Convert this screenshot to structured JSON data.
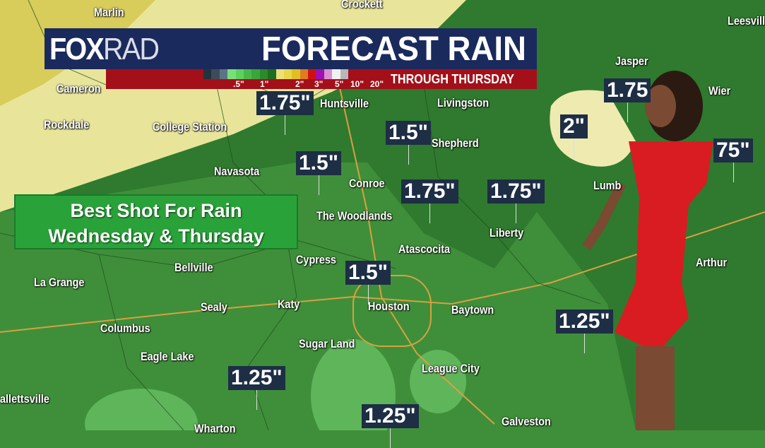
{
  "header": {
    "logo": "FOXRAD",
    "logo_bold": "FOX",
    "logo_light": "RAD",
    "title": "FORECAST RAIN",
    "subtitle": "THROUGH THURSDAY",
    "legend_colors": [
      "#24323c",
      "#3c4c58",
      "#5a7484",
      "#78e078",
      "#5ed05e",
      "#48b848",
      "#3aa53a",
      "#2b8a2b",
      "#1f6e1f",
      "#ece07a",
      "#e8d648",
      "#e0c020",
      "#e07b20",
      "#d01010",
      "#a010b0",
      "#d890d0",
      "#f0f0f0",
      "#b8b8b8"
    ],
    "legend_labels": [
      ".5\"",
      "1\"",
      "2\"",
      "3\"",
      "5\"",
      "10\"",
      "20\""
    ]
  },
  "banner": {
    "line1": "Best Shot For Rain",
    "line2": "Wednesday & Thursday"
  },
  "cities": [
    "Marlin",
    "Crockett",
    "Leesville",
    "Cameron",
    "Rockdale",
    "College Station",
    "Huntsville",
    "Livingston",
    "Jasper",
    "Wier",
    "Shepherd",
    "Navasota",
    "Conroe",
    "The Woodlands",
    "Liberty",
    "Lumb",
    "Atascocita",
    "Cypress",
    "Bellville",
    "La Grange",
    "Sealy",
    "Katy",
    "Houston",
    "Baytown",
    "Arthur",
    "Columbus",
    "Sugar Land",
    "Eagle Lake",
    "League City",
    "allettsville",
    "Wharton",
    "Galveston"
  ],
  "rain_totals": [
    "1.75\"",
    "1.5\"",
    "1.5\"",
    "1.75\"",
    "1.75\"",
    "2\"",
    "1.75",
    "75\"",
    "1.5\"",
    "1.25\"",
    "1.25\"",
    "1.25\""
  ]
}
